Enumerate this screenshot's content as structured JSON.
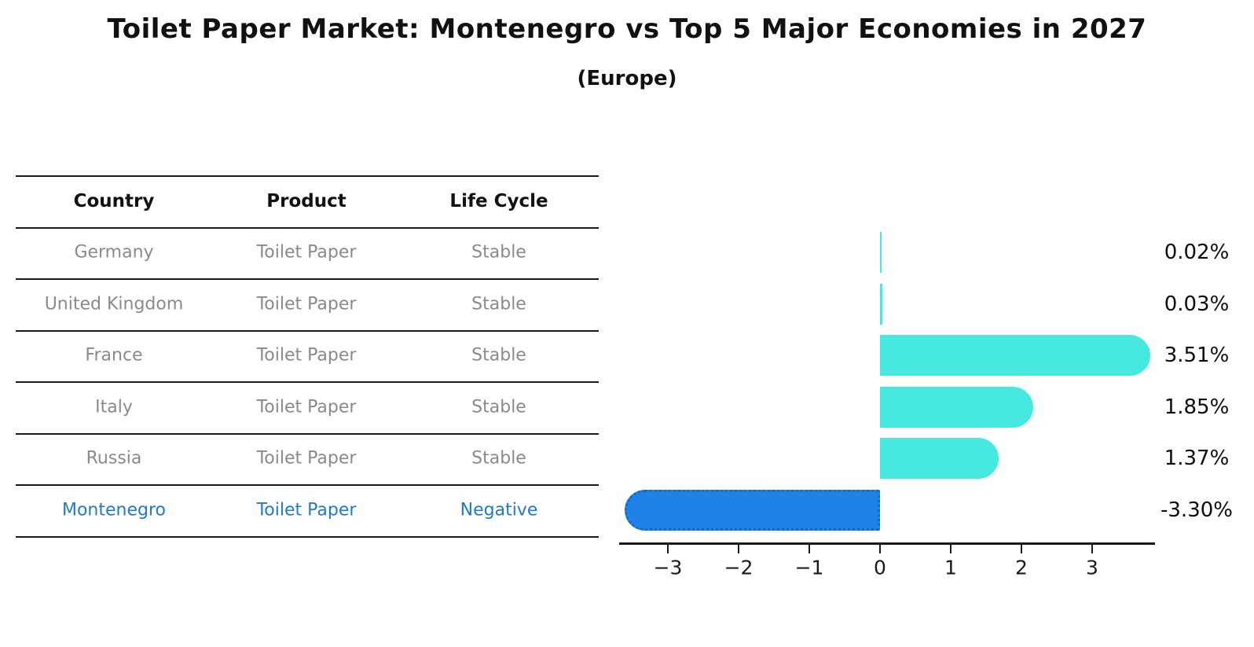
{
  "header": {
    "title": "Toilet Paper Market: Montenegro vs Top 5 Major Economies in 2027",
    "subtitle": "(Europe)"
  },
  "table": {
    "headers": [
      "Country",
      "Product",
      "Life Cycle"
    ],
    "rows": [
      {
        "country": "Germany",
        "product": "Toilet Paper",
        "life_cycle": "Stable",
        "highlight": false
      },
      {
        "country": "United Kingdom",
        "product": "Toilet Paper",
        "life_cycle": "Stable",
        "highlight": false
      },
      {
        "country": "France",
        "product": "Toilet Paper",
        "life_cycle": "Stable",
        "highlight": false
      },
      {
        "country": "Italy",
        "product": "Toilet Paper",
        "life_cycle": "Stable",
        "highlight": false
      },
      {
        "country": "Russia",
        "product": "Toilet Paper",
        "life_cycle": "Stable",
        "highlight": false
      },
      {
        "country": "Montenegro",
        "product": "Toilet Paper",
        "life_cycle": "Negative",
        "highlight": true
      }
    ]
  },
  "chart_data": {
    "type": "bar",
    "orientation": "horizontal",
    "title": "Toilet Paper Market: Montenegro vs Top 5 Major Economies in 2027 (Europe)",
    "categories": [
      "Germany",
      "United Kingdom",
      "France",
      "Italy",
      "Russia",
      "Montenegro"
    ],
    "values": [
      0.02,
      0.03,
      3.51,
      1.85,
      1.37,
      -3.3
    ],
    "value_labels": [
      "0.02%",
      "0.03%",
      "3.51%",
      "1.85%",
      "1.37%",
      "-3.30%"
    ],
    "unit": "percent growth",
    "xtick_values": [
      -3,
      -2,
      -1,
      0,
      1,
      2,
      3
    ],
    "xtick_labels": [
      "−3",
      "−2",
      "−1",
      "0",
      "1",
      "2",
      "3"
    ],
    "xlim": [
      -3.7,
      3.9
    ],
    "grid": false,
    "legend": false,
    "colors": {
      "positive_bar": "#47e8e0",
      "negative_bar": "#1e82e6",
      "negative_bar_edge": "#0f6ad2",
      "highlight_text": "#1d7ad0",
      "table_text": "#8a8a8a",
      "axis": "#1a1a1a"
    }
  }
}
